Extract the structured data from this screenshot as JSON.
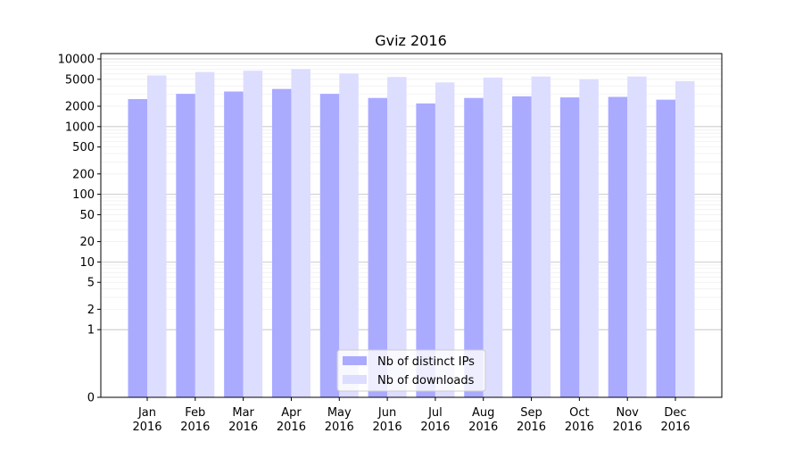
{
  "chart_data": {
    "type": "bar",
    "title": "Gviz 2016",
    "xlabel": "",
    "ylabel": "",
    "yscale": "symlog",
    "ylim": [
      0,
      12000
    ],
    "grid": "horizontal, major and minor",
    "legend_position": "lower center",
    "categories": [
      [
        "Jan",
        "2016"
      ],
      [
        "Feb",
        "2016"
      ],
      [
        "Mar",
        "2016"
      ],
      [
        "Apr",
        "2016"
      ],
      [
        "May",
        "2016"
      ],
      [
        "Jun",
        "2016"
      ],
      [
        "Jul",
        "2016"
      ],
      [
        "Aug",
        "2016"
      ],
      [
        "Sep",
        "2016"
      ],
      [
        "Oct",
        "2016"
      ],
      [
        "Nov",
        "2016"
      ],
      [
        "Dec",
        "2016"
      ]
    ],
    "y_ticks": [
      {
        "value": 0,
        "label": "0"
      },
      {
        "value": 1,
        "label": "1"
      },
      {
        "value": 2,
        "label": "2"
      },
      {
        "value": 5,
        "label": "5"
      },
      {
        "value": 10,
        "label": "10"
      },
      {
        "value": 20,
        "label": "20"
      },
      {
        "value": 50,
        "label": "50"
      },
      {
        "value": 100,
        "label": "100"
      },
      {
        "value": 200,
        "label": "200"
      },
      {
        "value": 500,
        "label": "500"
      },
      {
        "value": 1000,
        "label": "1000"
      },
      {
        "value": 2000,
        "label": "2000"
      },
      {
        "value": 5000,
        "label": "5000"
      },
      {
        "value": 10000,
        "label": "10000"
      }
    ],
    "series": [
      {
        "name": "Nb of distinct IPs",
        "color": "#aaaaff",
        "values": [
          2550,
          3050,
          3300,
          3600,
          3050,
          2650,
          2200,
          2650,
          2800,
          2700,
          2750,
          2500
        ]
      },
      {
        "name": "Nb of downloads",
        "color": "#ddddff",
        "values": [
          5700,
          6400,
          6700,
          7100,
          6100,
          5400,
          4500,
          5300,
          5500,
          5000,
          5500,
          4700
        ]
      }
    ]
  }
}
